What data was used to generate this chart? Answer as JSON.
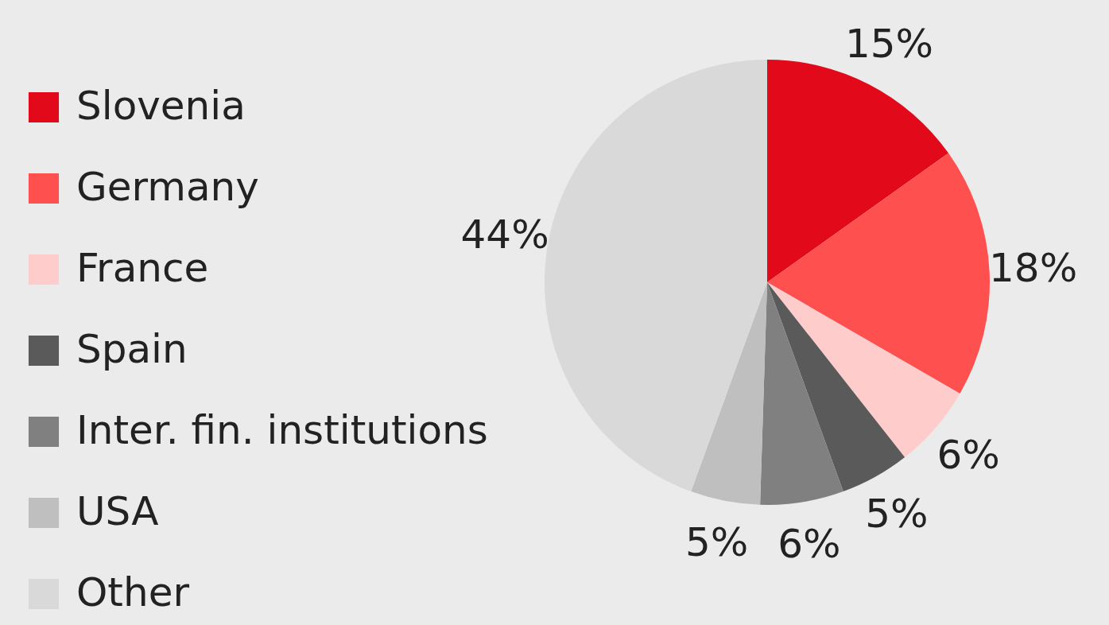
{
  "chart_data": {
    "type": "pie",
    "categories": [
      "Slovenia",
      "Germany",
      "France",
      "Spain",
      "Inter. fin. institutions",
      "USA",
      "Other"
    ],
    "values": [
      15,
      18,
      6,
      5,
      6,
      5,
      44
    ],
    "colors": [
      "#e20a1a",
      "#ff5050",
      "#ffcccc",
      "#5a5a5a",
      "#808080",
      "#bfbfbf",
      "#d9d9d9"
    ],
    "value_labels": [
      "15%",
      "18%",
      "6%",
      "5%",
      "6%",
      "5%",
      "44%"
    ],
    "legend": "left"
  }
}
